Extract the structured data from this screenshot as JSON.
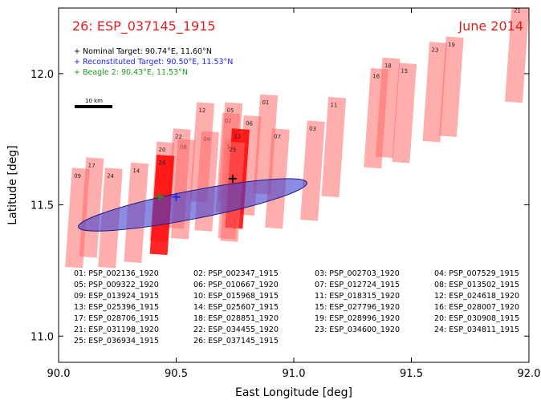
{
  "chart_data": {
    "type": "scatter",
    "title_left": "26: ESP_037145_1915",
    "title_right": "June 2014",
    "xlabel": "East Longitude [deg]",
    "ylabel": "Latitude [deg]",
    "xlim": [
      90.0,
      92.0
    ],
    "ylim": [
      10.9,
      12.25
    ],
    "xticks": [
      "90.0",
      "90.5",
      "91.0",
      "91.5",
      "92.0"
    ],
    "yticks": [
      "11.0",
      "11.5",
      "12.0"
    ],
    "scale_bar_label": "10 km",
    "targets": [
      {
        "label": "Nominal Target: 90.74°E, 11.60°N",
        "lon": 90.74,
        "lat": 11.6,
        "color": "#000000"
      },
      {
        "label": "Reconstituted Target: 90.50°E, 11.53°N",
        "lon": 90.5,
        "lat": 11.53,
        "color": "#1f1fff"
      },
      {
        "label": "Beagle 2: 90.43°E, 11.53°N",
        "lon": 90.43,
        "lat": 11.53,
        "color": "#1a9a1a"
      }
    ],
    "ellipse": {
      "center_lon": 90.57,
      "center_lat": 11.5,
      "semi_major_deg": 0.495,
      "semi_minor_deg": 0.06,
      "angle_deg": 11,
      "color": "#4040d0"
    },
    "footprints": [
      {
        "id": "01",
        "lon": 90.88,
        "lat": 11.73,
        "highlight": false
      },
      {
        "id": "02",
        "lon": 90.72,
        "lat": 11.66,
        "highlight": false
      },
      {
        "id": "03",
        "lon": 91.08,
        "lat": 11.63,
        "highlight": false
      },
      {
        "id": "04",
        "lon": 90.63,
        "lat": 11.59,
        "highlight": false
      },
      {
        "id": "05",
        "lon": 90.73,
        "lat": 11.7,
        "highlight": false
      },
      {
        "id": "06",
        "lon": 90.81,
        "lat": 11.65,
        "highlight": false
      },
      {
        "id": "07",
        "lon": 90.93,
        "lat": 11.6,
        "highlight": false
      },
      {
        "id": "08",
        "lon": 90.53,
        "lat": 11.56,
        "highlight": false
      },
      {
        "id": "09",
        "lon": 90.08,
        "lat": 11.45,
        "highlight": false
      },
      {
        "id": "10",
        "lon": 90.73,
        "lat": 11.56,
        "highlight": false
      },
      {
        "id": "11",
        "lon": 91.17,
        "lat": 11.72,
        "highlight": false
      },
      {
        "id": "12",
        "lon": 90.61,
        "lat": 11.7,
        "highlight": false
      },
      {
        "id": "13",
        "lon": 90.76,
        "lat": 11.6,
        "highlight": true
      },
      {
        "id": "14",
        "lon": 90.33,
        "lat": 11.47,
        "highlight": false
      },
      {
        "id": "15",
        "lon": 91.47,
        "lat": 11.85,
        "highlight": false
      },
      {
        "id": "16",
        "lon": 91.35,
        "lat": 11.83,
        "highlight": false
      },
      {
        "id": "17",
        "lon": 90.14,
        "lat": 11.49,
        "highlight": false
      },
      {
        "id": "18",
        "lon": 91.4,
        "lat": 11.87,
        "highlight": false
      },
      {
        "id": "19",
        "lon": 91.67,
        "lat": 11.95,
        "highlight": false
      },
      {
        "id": "20",
        "lon": 90.44,
        "lat": 11.55,
        "highlight": false
      },
      {
        "id": "21",
        "lon": 91.95,
        "lat": 12.08,
        "highlight": false
      },
      {
        "id": "22",
        "lon": 90.51,
        "lat": 11.6,
        "highlight": false
      },
      {
        "id": "23",
        "lon": 91.6,
        "lat": 11.93,
        "highlight": false
      },
      {
        "id": "24",
        "lon": 90.22,
        "lat": 11.45,
        "highlight": false
      },
      {
        "id": "25",
        "lon": 90.74,
        "lat": 11.55,
        "highlight": false
      },
      {
        "id": "26",
        "lon": 90.44,
        "lat": 11.5,
        "highlight": true
      }
    ],
    "table": [
      "01: PSP_002136_1920",
      "02: PSP_002347_1915",
      "03: PSP_002703_1920",
      "04: PSP_007529_1915",
      "05: PSP_009322_1920",
      "06: PSP_010667_1920",
      "07: ESP_012724_1915",
      "08: ESP_013502_1915",
      "09: ESP_013924_1915",
      "10: ESP_015968_1915",
      "11: ESP_018315_1920",
      "12: ESP_024618_1920",
      "13: ESP_025396_1915",
      "14: ESP_025607_1915",
      "15: ESP_027796_1920",
      "16: ESP_028007_1920",
      "17: ESP_028706_1915",
      "18: ESP_028851_1920",
      "19: ESP_028996_1920",
      "20: ESP_030908_1915",
      "21: ESP_031198_1920",
      "22: ESP_034455_1920",
      "23: ESP_034600_1920",
      "24: ESP_034811_1915",
      "25: ESP_036934_1915",
      "26: ESP_037145_1915"
    ]
  }
}
